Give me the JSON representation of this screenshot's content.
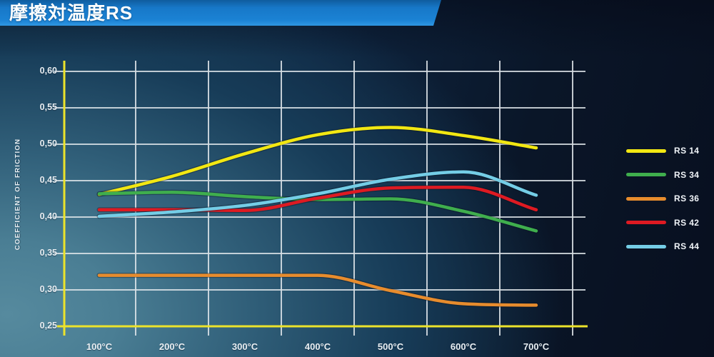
{
  "header": {
    "title": "摩擦対温度RS"
  },
  "colors": {
    "axis_yellow": "#ece32b",
    "grid_white": "#e2e8ec",
    "banner_blue": "#1b82d4",
    "tick_text": "#e9eff3"
  },
  "chart_data": {
    "type": "line",
    "title": "摩擦対温度RS",
    "xlabel": "",
    "ylabel": "COEFFICIENT OF FRICTION",
    "x": [
      100,
      200,
      300,
      400,
      500,
      600,
      700
    ],
    "x_tick_labels": [
      "100°C",
      "200°C",
      "300°C",
      "400°C",
      "500°C",
      "600°C",
      "700°C"
    ],
    "y_ticks": [
      0.25,
      0.3,
      0.35,
      0.4,
      0.45,
      0.5,
      0.55,
      0.6
    ],
    "y_tick_labels": [
      "0,25",
      "0,30",
      "0,35",
      "0,40",
      "0,45",
      "0,50",
      "0,55",
      "0,60"
    ],
    "xlim": [
      100,
      700
    ],
    "ylim": [
      0.25,
      0.6
    ],
    "grid": true,
    "legend_position": "right",
    "series": [
      {
        "name": "RS 14",
        "color": "#f2e712",
        "values": [
          0.431,
          0.456,
          0.487,
          0.513,
          0.523,
          0.512,
          0.495
        ]
      },
      {
        "name": "RS 34",
        "color": "#3fae4d",
        "values": [
          0.432,
          0.434,
          0.428,
          0.424,
          0.425,
          0.408,
          0.381
        ]
      },
      {
        "name": "RS 36",
        "color": "#e78c2d",
        "values": [
          0.32,
          0.32,
          0.32,
          0.32,
          0.299,
          0.281,
          0.279
        ]
      },
      {
        "name": "RS 42",
        "color": "#de1a22",
        "values": [
          0.41,
          0.41,
          0.409,
          0.426,
          0.44,
          0.441,
          0.41
        ]
      },
      {
        "name": "RS 44",
        "color": "#74cde6",
        "values": [
          0.401,
          0.407,
          0.416,
          0.432,
          0.452,
          0.462,
          0.43
        ]
      }
    ]
  }
}
